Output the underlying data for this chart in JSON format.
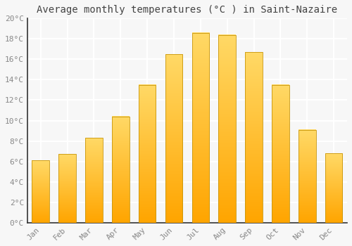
{
  "title": "Average monthly temperatures (°C ) in Saint-Nazaire",
  "months": [
    "Jan",
    "Feb",
    "Mar",
    "Apr",
    "May",
    "Jun",
    "Jul",
    "Aug",
    "Sep",
    "Oct",
    "Nov",
    "Dec"
  ],
  "values": [
    6.1,
    6.7,
    8.3,
    10.4,
    13.5,
    16.5,
    18.6,
    18.4,
    16.7,
    13.5,
    9.1,
    6.8
  ],
  "bar_color_bottom": "#FFA500",
  "bar_color_top": "#FFD966",
  "bar_edge_color": "#C8960C",
  "ylim": [
    0,
    20
  ],
  "ytick_step": 2,
  "background_color": "#f7f7f7",
  "plot_bg_color": "#f7f7f7",
  "grid_color": "#ffffff",
  "title_fontsize": 10,
  "tick_fontsize": 8,
  "font_family": "monospace",
  "tick_color": "#888888",
  "spine_color": "#333333"
}
